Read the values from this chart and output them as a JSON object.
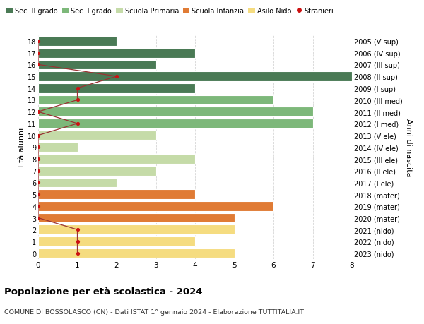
{
  "ages": [
    18,
    17,
    16,
    15,
    14,
    13,
    12,
    11,
    10,
    9,
    8,
    7,
    6,
    5,
    4,
    3,
    2,
    1,
    0
  ],
  "years": [
    "2005 (V sup)",
    "2006 (IV sup)",
    "2007 (III sup)",
    "2008 (II sup)",
    "2009 (I sup)",
    "2010 (III med)",
    "2011 (II med)",
    "2012 (I med)",
    "2013 (V ele)",
    "2014 (IV ele)",
    "2015 (III ele)",
    "2016 (II ele)",
    "2017 (I ele)",
    "2018 (mater)",
    "2019 (mater)",
    "2020 (mater)",
    "2021 (nido)",
    "2022 (nido)",
    "2023 (nido)"
  ],
  "bar_values": [
    2,
    4,
    3,
    8,
    4,
    6,
    7,
    7,
    3,
    1,
    4,
    3,
    2,
    4,
    6,
    5,
    5,
    4,
    5
  ],
  "bar_colors": [
    "#4a7a55",
    "#4a7a55",
    "#4a7a55",
    "#4a7a55",
    "#4a7a55",
    "#7db87a",
    "#7db87a",
    "#7db87a",
    "#c5dba8",
    "#c5dba8",
    "#c5dba8",
    "#c5dba8",
    "#c5dba8",
    "#e07b35",
    "#e07b35",
    "#e07b35",
    "#f5dc80",
    "#f5dc80",
    "#f5dc80"
  ],
  "stranieri_x": [
    0,
    0,
    0,
    2,
    1,
    1,
    0,
    1,
    0,
    0,
    0,
    0,
    0,
    0,
    0,
    0,
    1,
    1,
    1
  ],
  "legend_labels": [
    "Sec. II grado",
    "Sec. I grado",
    "Scuola Primaria",
    "Scuola Infanzia",
    "Asilo Nido",
    "Stranieri"
  ],
  "legend_colors": [
    "#4a7a55",
    "#7db87a",
    "#c5dba8",
    "#e07b35",
    "#f5dc80",
    "#cc1111"
  ],
  "title": "Popolazione per età scolastica - 2024",
  "subtitle": "COMUNE DI BOSSOLASCO (CN) - Dati ISTAT 1° gennaio 2024 - Elaborazione TUTTITALIA.IT",
  "ylabel_left": "Età alunni",
  "ylabel_right": "Anni di nascita",
  "xlim": [
    0,
    8
  ],
  "ylim": [
    -0.5,
    18.5
  ],
  "bg_color": "#ffffff",
  "bar_edge_color": "#ffffff",
  "grid_color": "#cccccc",
  "stranieri_color": "#cc1111",
  "stranieri_line_color": "#993333"
}
